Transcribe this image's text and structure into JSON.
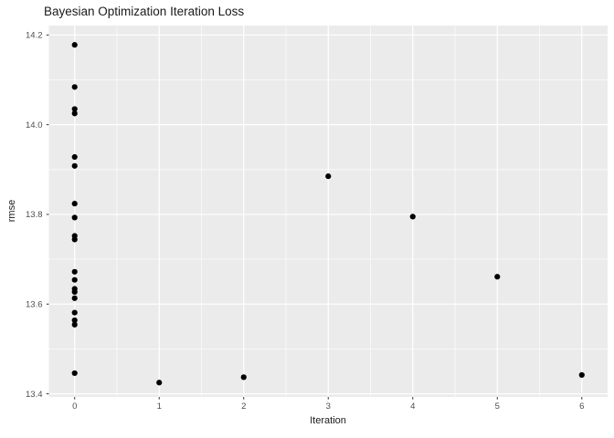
{
  "chart_data": {
    "type": "scatter",
    "title": "Bayesian Optimization Iteration Loss",
    "xlabel": "Iteration",
    "ylabel": "rmse",
    "xlim": [
      -0.305,
      6.305
    ],
    "ylim": [
      13.393,
      14.221
    ],
    "x_ticks": [
      0,
      1,
      2,
      3,
      4,
      5,
      6
    ],
    "x_tick_labels": [
      "0",
      "1",
      "2",
      "3",
      "4",
      "5",
      "6"
    ],
    "y_ticks": [
      13.4,
      13.6,
      13.8,
      14.0,
      14.2
    ],
    "y_tick_labels": [
      "13.4",
      "13.6",
      "13.8",
      "14.0",
      "14.2"
    ],
    "x_minor_ticks": [
      0.5,
      1.5,
      2.5,
      3.5,
      4.5,
      5.5
    ],
    "y_minor_ticks": [
      13.5,
      13.7,
      13.9,
      14.1
    ],
    "grid": true,
    "legend_position": "none",
    "point_radius": 3.1,
    "points": [
      [
        0,
        14.178
      ],
      [
        0,
        14.084
      ],
      [
        0,
        14.035
      ],
      [
        0,
        14.025
      ],
      [
        0,
        13.928
      ],
      [
        0,
        13.908
      ],
      [
        0,
        13.824
      ],
      [
        0,
        13.793
      ],
      [
        0,
        13.752
      ],
      [
        0,
        13.744
      ],
      [
        0,
        13.672
      ],
      [
        0,
        13.654
      ],
      [
        0,
        13.634
      ],
      [
        0,
        13.627
      ],
      [
        0,
        13.613
      ],
      [
        0,
        13.581
      ],
      [
        0,
        13.564
      ],
      [
        0,
        13.554
      ],
      [
        0,
        13.446
      ],
      [
        1,
        13.425
      ],
      [
        2,
        13.437
      ],
      [
        3,
        13.885
      ],
      [
        4,
        13.795
      ],
      [
        5,
        13.661
      ],
      [
        6,
        13.442
      ]
    ],
    "colors": {
      "background": "#FFFFFF",
      "panel_background": "#EBEBEB",
      "grid_line": "#FFFFFF",
      "point": "#000000",
      "tick_label": "#4D4D4D",
      "tick_mark": "#333333",
      "axis_title": "#1A1A1A",
      "title": "#1A1A1A"
    }
  }
}
